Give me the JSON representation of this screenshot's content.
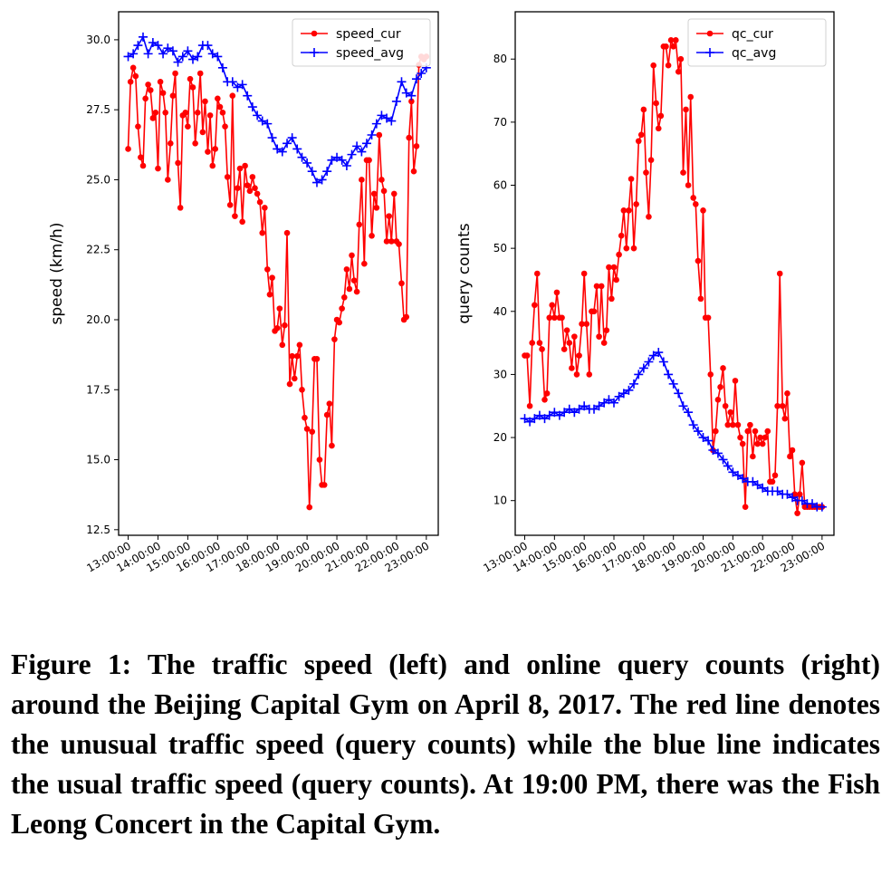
{
  "chart_data": [
    {
      "type": "line",
      "ylabel": "speed (km/h)",
      "xlabel": "",
      "ylim": [
        12.3,
        31.0
      ],
      "yticks": [
        12.5,
        15.0,
        17.5,
        20.0,
        22.5,
        25.0,
        27.5,
        30.0
      ],
      "ytick_labels": [
        "12.5",
        "15.0",
        "17.5",
        "20.0",
        "22.5",
        "25.0",
        "27.5",
        "30.0"
      ],
      "xlim": [
        12.68,
        23.4
      ],
      "xticks": [
        13,
        14,
        15,
        16,
        17,
        18,
        19,
        20,
        21,
        22,
        23
      ],
      "xtick_labels": [
        "13:00:00",
        "14:00:00",
        "15:00:00",
        "16:00:00",
        "17:00:00",
        "18:00:00",
        "19:00:00",
        "20:00:00",
        "21:00:00",
        "22:00:00",
        "23:00:00"
      ],
      "legend_position": "top-right",
      "series": [
        {
          "name": "speed_cur",
          "color": "#ff0000",
          "marker": "dot",
          "x": [
            13.0,
            13.08,
            13.17,
            13.25,
            13.33,
            13.42,
            13.5,
            13.58,
            13.67,
            13.75,
            13.83,
            13.92,
            14.0,
            14.08,
            14.17,
            14.25,
            14.33,
            14.42,
            14.5,
            14.58,
            14.67,
            14.75,
            14.83,
            14.92,
            15.0,
            15.08,
            15.17,
            15.25,
            15.33,
            15.42,
            15.5,
            15.58,
            15.67,
            15.75,
            15.83,
            15.92,
            16.0,
            16.08,
            16.17,
            16.25,
            16.33,
            16.42,
            16.5,
            16.58,
            16.67,
            16.75,
            16.83,
            16.92,
            17.0,
            17.08,
            17.17,
            17.25,
            17.33,
            17.42,
            17.5,
            17.58,
            17.67,
            17.75,
            17.83,
            17.92,
            18.0,
            18.08,
            18.17,
            18.25,
            18.33,
            18.42,
            18.5,
            18.58,
            18.67,
            18.75,
            18.83,
            18.92,
            19.0,
            19.08,
            19.17,
            19.25,
            19.33,
            19.42,
            19.5,
            19.58,
            19.67,
            19.75,
            19.83,
            19.92,
            20.0,
            20.08,
            20.17,
            20.25,
            20.33,
            20.42,
            20.5,
            20.58,
            20.67,
            20.75,
            20.83,
            20.92,
            21.0,
            21.08,
            21.17,
            21.25,
            21.33,
            21.42,
            21.5,
            21.58,
            21.67,
            21.75,
            21.83,
            21.92,
            22.0,
            22.08,
            22.17,
            22.25,
            22.33,
            22.42,
            22.5,
            22.58,
            22.67,
            22.75,
            22.83,
            22.92,
            23.0
          ],
          "y": [
            26.1,
            28.5,
            29.0,
            28.7,
            26.9,
            25.8,
            25.5,
            27.9,
            28.4,
            28.2,
            27.2,
            27.4,
            25.4,
            28.5,
            28.1,
            27.4,
            25.0,
            26.3,
            28.0,
            28.8,
            25.6,
            24.0,
            27.3,
            27.4,
            26.9,
            28.6,
            28.3,
            26.3,
            27.4,
            28.8,
            26.7,
            27.8,
            26.0,
            27.3,
            25.5,
            26.1,
            27.9,
            27.6,
            27.4,
            26.9,
            25.1,
            24.1,
            28.0,
            23.7,
            24.7,
            25.4,
            23.5,
            25.5,
            24.8,
            24.6,
            25.1,
            24.7,
            24.5,
            24.2,
            23.1,
            24.0,
            21.8,
            20.9,
            21.5,
            19.6,
            19.7,
            20.4,
            19.1,
            19.8,
            23.1,
            17.7,
            18.7,
            17.9,
            18.7,
            19.1,
            17.5,
            16.5,
            16.1,
            13.3,
            16.0,
            18.6,
            18.6,
            15.0,
            14.1,
            14.1,
            16.6,
            17.0,
            15.5,
            19.3,
            20.0,
            19.9,
            20.4,
            20.8,
            21.8,
            21.1,
            22.3,
            21.4,
            21.0,
            23.4,
            25.0,
            22.0,
            25.7,
            25.7,
            23.0,
            24.5,
            24.0,
            26.6,
            25.0,
            24.6,
            22.8,
            23.7,
            22.8,
            24.5,
            22.8,
            22.7,
            21.3,
            20.0,
            20.1,
            26.5,
            27.8,
            25.3,
            26.2,
            29.1,
            29.4,
            29.3,
            29.4
          ],
          "y_note": "values continue to 23:00"
        },
        {
          "name": "speed_avg",
          "color": "#0000ff",
          "marker": "plus",
          "x": [
            13.0,
            13.17,
            13.33,
            13.5,
            13.67,
            13.83,
            14.0,
            14.17,
            14.33,
            14.5,
            14.67,
            14.83,
            15.0,
            15.17,
            15.33,
            15.5,
            15.67,
            15.83,
            16.0,
            16.17,
            16.33,
            16.5,
            16.67,
            16.83,
            17.0,
            17.17,
            17.33,
            17.5,
            17.67,
            17.83,
            18.0,
            18.17,
            18.33,
            18.5,
            18.67,
            18.83,
            19.0,
            19.17,
            19.33,
            19.5,
            19.67,
            19.83,
            20.0,
            20.17,
            20.33,
            20.5,
            20.67,
            20.83,
            21.0,
            21.17,
            21.33,
            21.5,
            21.67,
            21.83,
            22.0,
            22.17,
            22.33,
            22.5,
            22.67,
            22.83,
            23.0
          ],
          "y": [
            29.4,
            29.5,
            29.8,
            30.1,
            29.5,
            29.9,
            29.8,
            29.5,
            29.7,
            29.6,
            29.2,
            29.4,
            29.6,
            29.3,
            29.4,
            29.8,
            29.8,
            29.5,
            29.4,
            29.0,
            28.5,
            28.5,
            28.3,
            28.4,
            28.0,
            27.6,
            27.3,
            27.1,
            27.0,
            26.5,
            26.1,
            26.0,
            26.3,
            26.5,
            26.1,
            25.8,
            25.6,
            25.3,
            24.9,
            25.0,
            25.3,
            25.7,
            25.8,
            25.7,
            25.5,
            25.9,
            26.2,
            26.0,
            26.3,
            26.6,
            27.0,
            27.3,
            27.2,
            27.1,
            27.8,
            28.5,
            28.1,
            28.0,
            28.6,
            28.8,
            29.0
          ]
        }
      ]
    },
    {
      "type": "line",
      "ylabel": "query counts",
      "xlabel": "",
      "ylim": [
        4.5,
        87.5
      ],
      "yticks": [
        10,
        20,
        30,
        40,
        50,
        60,
        70,
        80
      ],
      "ytick_labels": [
        "10",
        "20",
        "30",
        "40",
        "50",
        "60",
        "70",
        "80"
      ],
      "xlim": [
        12.68,
        23.4
      ],
      "xticks": [
        13,
        14,
        15,
        16,
        17,
        18,
        19,
        20,
        21,
        22,
        23
      ],
      "xtick_labels": [
        "13:00:00",
        "14:00:00",
        "15:00:00",
        "16:00:00",
        "17:00:00",
        "18:00:00",
        "19:00:00",
        "20:00:00",
        "21:00:00",
        "22:00:00",
        "23:00:00"
      ],
      "legend_position": "top-right",
      "series": [
        {
          "name": "qc_cur",
          "color": "#ff0000",
          "marker": "dot",
          "x": [
            13.0,
            13.08,
            13.17,
            13.25,
            13.33,
            13.42,
            13.5,
            13.58,
            13.67,
            13.75,
            13.83,
            13.92,
            14.0,
            14.08,
            14.17,
            14.25,
            14.33,
            14.42,
            14.5,
            14.58,
            14.67,
            14.75,
            14.83,
            14.92,
            15.0,
            15.08,
            15.17,
            15.25,
            15.33,
            15.42,
            15.5,
            15.58,
            15.67,
            15.75,
            15.83,
            15.92,
            16.0,
            16.08,
            16.17,
            16.25,
            16.33,
            16.42,
            16.5,
            16.58,
            16.67,
            16.75,
            16.83,
            16.92,
            17.0,
            17.08,
            17.17,
            17.25,
            17.33,
            17.42,
            17.5,
            17.58,
            17.67,
            17.75,
            17.83,
            17.92,
            18.0,
            18.08,
            18.17,
            18.25,
            18.33,
            18.42,
            18.5,
            18.58,
            18.67,
            18.75,
            18.83,
            18.92,
            19.0,
            19.08,
            19.17,
            19.25,
            19.33,
            19.42,
            19.5,
            19.58,
            19.67,
            19.75,
            19.83,
            19.92,
            20.0,
            20.08,
            20.17,
            20.25,
            20.33,
            20.42,
            20.5,
            20.58,
            20.67,
            20.75,
            20.83,
            20.92,
            21.0,
            21.08,
            21.17,
            21.25,
            21.33,
            21.42,
            21.5,
            21.58,
            21.67,
            21.75,
            21.83,
            21.92,
            22.0,
            22.08,
            22.17,
            22.25,
            22.33,
            22.42,
            22.5,
            22.58,
            22.67,
            22.75,
            22.83,
            22.92,
            23.0
          ],
          "y": [
            33,
            33,
            25,
            35,
            41,
            46,
            35,
            34,
            26,
            27,
            39,
            41,
            39,
            43,
            39,
            39,
            34,
            37,
            35,
            31,
            36,
            30,
            33,
            38,
            46,
            38,
            30,
            40,
            40,
            44,
            36,
            44,
            35,
            37,
            47,
            42,
            47,
            45,
            49,
            52,
            56,
            50,
            56,
            61,
            50,
            57,
            67,
            68,
            72,
            62,
            55,
            64,
            79,
            73,
            69,
            71,
            82,
            82,
            79,
            83,
            82,
            83,
            78,
            80,
            62,
            72,
            60,
            74,
            58,
            57,
            48,
            42,
            56,
            39,
            39,
            30,
            18,
            21,
            26,
            28,
            31,
            25,
            22,
            24,
            22,
            29,
            22,
            20,
            19,
            9,
            21,
            22,
            17,
            21,
            19,
            20,
            19,
            20,
            21,
            13,
            13,
            14,
            25,
            46,
            25,
            23,
            27,
            17,
            18,
            11,
            8,
            11,
            16,
            9,
            9,
            9,
            9,
            9,
            9,
            9,
            9
          ],
          "y_note": "trailing values flat"
        },
        {
          "name": "qc_avg",
          "color": "#0000ff",
          "marker": "plus",
          "x": [
            13.0,
            13.17,
            13.33,
            13.5,
            13.67,
            13.83,
            14.0,
            14.17,
            14.33,
            14.5,
            14.67,
            14.83,
            15.0,
            15.17,
            15.33,
            15.5,
            15.67,
            15.83,
            16.0,
            16.17,
            16.33,
            16.5,
            16.67,
            16.83,
            17.0,
            17.17,
            17.33,
            17.5,
            17.67,
            17.83,
            18.0,
            18.17,
            18.33,
            18.5,
            18.67,
            18.83,
            19.0,
            19.17,
            19.33,
            19.5,
            19.67,
            19.83,
            20.0,
            20.17,
            20.33,
            20.5,
            20.67,
            20.83,
            21.0,
            21.17,
            21.33,
            21.5,
            21.67,
            21.83,
            22.0,
            22.17,
            22.33,
            22.5,
            22.67,
            22.83,
            23.0
          ],
          "y": [
            23,
            22.5,
            23,
            23.5,
            23,
            23.5,
            24,
            23.5,
            24,
            24.5,
            24,
            24.5,
            25,
            24.5,
            24.5,
            25,
            25.5,
            26,
            25.5,
            26.5,
            27,
            27.5,
            28.5,
            30,
            31,
            32,
            33,
            33.5,
            32,
            30,
            28.5,
            27,
            25,
            24,
            22,
            21,
            20,
            19.5,
            18,
            17.5,
            16.5,
            15.5,
            14.5,
            14,
            13.5,
            13,
            13,
            12.5,
            12,
            11.5,
            11.5,
            11.5,
            11,
            11,
            10.5,
            10,
            10,
            9.5,
            9.5,
            9,
            9
          ]
        }
      ]
    }
  ],
  "caption": "Figure 1: The traffic speed (left) and online query counts (right) around the Beijing Capital Gym on April 8, 2017. The red line denotes the unusual traffic speed (query counts) while the blue line indicates the usual traffic speed (query counts). At 19:00 PM, there was the Fish Leong Concert in the Capital Gym."
}
